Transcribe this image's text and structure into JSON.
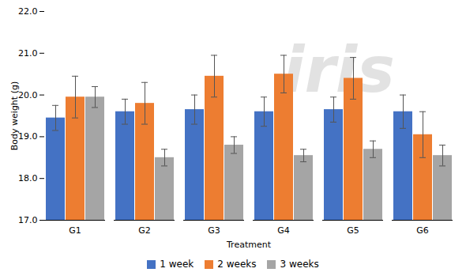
{
  "chart_data": {
    "type": "bar",
    "xlabel": "Treatment",
    "ylabel": "Body weight (g)",
    "annotations": [
      "iris"
    ],
    "categories": [
      "G1",
      "G2",
      "G3",
      "G4",
      "G5",
      "G6"
    ],
    "series": [
      {
        "name": "1 week",
        "color": "#4472C4",
        "values": [
          19.45,
          19.6,
          19.65,
          19.6,
          19.65,
          19.6
        ],
        "errors": [
          0.3,
          0.3,
          0.35,
          0.35,
          0.3,
          0.4
        ]
      },
      {
        "name": "2 weeks",
        "color": "#ED7D31",
        "values": [
          19.95,
          19.8,
          20.45,
          20.5,
          20.4,
          19.05
        ],
        "errors": [
          0.5,
          0.5,
          0.5,
          0.45,
          0.5,
          0.55
        ]
      },
      {
        "name": "3 weeks",
        "color": "#A5A5A5",
        "values": [
          19.95,
          18.5,
          18.8,
          18.55,
          18.7,
          18.55
        ],
        "errors": [
          0.25,
          0.2,
          0.2,
          0.15,
          0.2,
          0.25
        ]
      }
    ],
    "ylim": [
      17,
      22
    ],
    "yticks": [
      17,
      18,
      19,
      20,
      21,
      22
    ],
    "grid": false,
    "legend": "bottom"
  }
}
